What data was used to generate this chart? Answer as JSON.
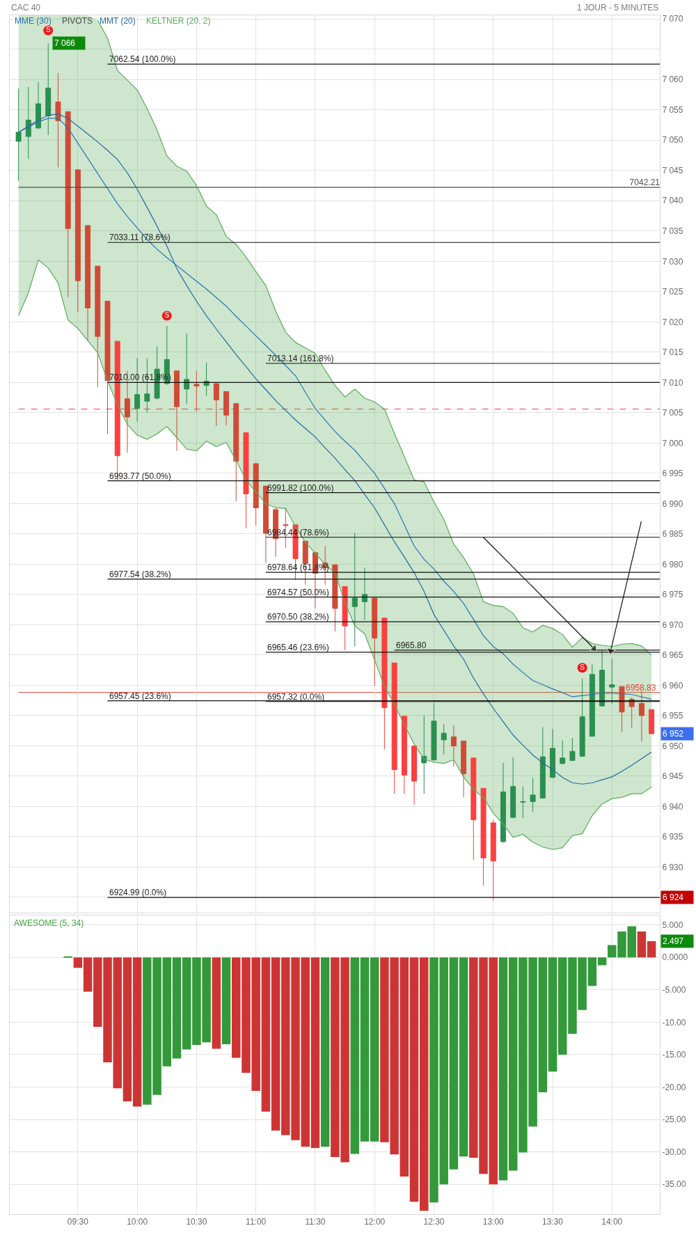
{
  "chart_data": [
    {
      "type": "candlestick",
      "title": "CAC 40",
      "subtitle": "1 JOUR - 5 MINUTES",
      "x": [
        9.0,
        9.0833,
        9.1667,
        9.25,
        9.3333,
        9.4167,
        9.5,
        9.5833,
        9.6667,
        9.75,
        9.8333,
        9.9167,
        10.0,
        10.0833,
        10.1667,
        10.25,
        10.3333,
        10.4167,
        10.5,
        10.5833,
        10.6667,
        10.75,
        10.8333,
        10.9167,
        11.0,
        11.0833,
        11.1667,
        11.25,
        11.3333,
        11.4167,
        11.5,
        11.5833,
        11.6667,
        11.75,
        11.8333,
        11.9167,
        12.0,
        12.0833,
        12.1667,
        12.25,
        12.3333,
        12.4167,
        12.5,
        12.5833,
        12.6667,
        12.75,
        12.8333,
        12.9167,
        13.0,
        13.0833,
        13.1667,
        13.25,
        13.3333,
        13.4167,
        13.5,
        13.5833,
        13.6667,
        13.75,
        13.8333,
        13.9167,
        14.0,
        14.0833,
        14.1667,
        14.25,
        14.3333
      ],
      "ohlc": [
        [
          7049.8,
          7058.5,
          7043.3,
          7051.3
        ],
        [
          7050.6,
          7058.8,
          7046.9,
          7053.3
        ],
        [
          7052.0,
          7059.6,
          7051.8,
          7056.0
        ],
        [
          7054.0,
          7066.0,
          7050.8,
          7058.6
        ],
        [
          7056.3,
          7061.1,
          7045.5,
          7053.2
        ],
        [
          7054.7,
          7054.7,
          7024.1,
          7035.4
        ],
        [
          7045.1,
          7045.1,
          7021.6,
          7026.8
        ],
        [
          7035.9,
          7035.9,
          7016.9,
          7022.3
        ],
        [
          7029.2,
          7029.2,
          7009.2,
          7017.6
        ],
        [
          7023.4,
          7023.4,
          7001.5,
          7010.3
        ],
        [
          7016.8,
          7016.8,
          6993.9,
          6997.9
        ],
        [
          7007.3,
          7011.9,
          6998.4,
          7004.3
        ],
        [
          7005.7,
          7014.0,
          7003.5,
          7008.0
        ],
        [
          7006.9,
          7014.0,
          7005.0,
          7008.1
        ],
        [
          7007.4,
          7015.9,
          7007.2,
          7012.2
        ],
        [
          7009.8,
          7019.3,
          7009.6,
          7013.8
        ],
        [
          7011.9,
          7011.9,
          6998.7,
          7006.0
        ],
        [
          7008.9,
          7018.1,
          7006.4,
          7010.5
        ],
        [
          7009.7,
          7011.9,
          7005.2,
          7009.4
        ],
        [
          7009.5,
          7013.3,
          7007.8,
          7010.2
        ],
        [
          7009.8,
          7009.8,
          7002.8,
          7007.1
        ],
        [
          7008.5,
          7008.5,
          7002.9,
          7004.6
        ],
        [
          7006.5,
          7006.5,
          6990.4,
          6997.0
        ],
        [
          7001.7,
          7001.7,
          6985.9,
          6991.6
        ],
        [
          6996.6,
          6996.6,
          6986.4,
          6989.3
        ],
        [
          6992.9,
          6992.9,
          6980.2,
          6985.1
        ],
        [
          6989.0,
          6989.4,
          6981.2,
          6984.2
        ],
        [
          6986.5,
          6989.3,
          6982.7,
          6986.4
        ],
        [
          6986.5,
          6986.5,
          6977.4,
          6980.9
        ],
        [
          6983.8,
          6983.8,
          6976.6,
          6980.1
        ],
        [
          6981.9,
          6981.9,
          6972.7,
          6978.5
        ],
        [
          6980.2,
          6983.0,
          6976.6,
          6979.4
        ],
        [
          6979.9,
          6979.9,
          6968.9,
          6972.7
        ],
        [
          6976.3,
          6976.3,
          6965.8,
          6969.8
        ],
        [
          6973.0,
          6985.2,
          6966.4,
          6974.4
        ],
        [
          6973.8,
          6979.4,
          6970.8,
          6975.0
        ],
        [
          6974.4,
          6974.4,
          6959.9,
          6967.8
        ],
        [
          6971.1,
          6971.1,
          6949.4,
          6956.3
        ],
        [
          6963.7,
          6963.7,
          6942.1,
          6946.1
        ],
        [
          6954.9,
          6954.9,
          6942.1,
          6945.2
        ],
        [
          6950.0,
          6950.0,
          6940.3,
          6944.2
        ],
        [
          6947.2,
          6955.0,
          6942.1,
          6948.3
        ],
        [
          6947.7,
          6957.1,
          6947.5,
          6954.1
        ],
        [
          6951.0,
          6953.6,
          6948.6,
          6952.1
        ],
        [
          6951.5,
          6953.4,
          6946.6,
          6950.0
        ],
        [
          6950.8,
          6950.8,
          6941.5,
          6945.4
        ],
        [
          6948.0,
          6948.0,
          6931.2,
          6937.8
        ],
        [
          6943.0,
          6943.0,
          6926.9,
          6931.5
        ],
        [
          6937.3,
          6937.8,
          6924.5,
          6931.0
        ],
        [
          6934.2,
          6947.2,
          6934.0,
          6942.4
        ],
        [
          6938.2,
          6948.1,
          6938.1,
          6943.3
        ],
        [
          6940.7,
          6943.3,
          6938.1,
          6940.8
        ],
        [
          6940.8,
          6944.7,
          6939.1,
          6941.9
        ],
        [
          6941.4,
          6953.1,
          6941.3,
          6948.2
        ],
        [
          6944.8,
          6952.8,
          6944.7,
          6949.6
        ],
        [
          6947.1,
          6950.9,
          6946.9,
          6948.0
        ],
        [
          6947.6,
          6951.3,
          6947.5,
          6949.1
        ],
        [
          6948.3,
          6961.1,
          6948.2,
          6954.8
        ],
        [
          6951.6,
          6963.5,
          6951.5,
          6961.8
        ],
        [
          6956.6,
          6965.8,
          6956.5,
          6962.5
        ],
        [
          6959.7,
          6964.4,
          6956.9,
          6960.1
        ],
        [
          6959.8,
          6959.8,
          6952.3,
          6955.6
        ],
        [
          6957.7,
          6958.0,
          6953.0,
          6956.5
        ],
        [
          6957.0,
          6959.0,
          6950.7,
          6955.0
        ],
        [
          6956.0,
          6956.0,
          6952.0,
          6952.0
        ]
      ],
      "colors": [
        "#2b8f50",
        "#2b8f50",
        "#2b8f50",
        "#2b8f50",
        "#cf4b36",
        "#cf4b36",
        "#cf4b36",
        "#cf4b36",
        "#cf4b36",
        "#cf4b36",
        "#fb3f3f",
        "#cf4b36",
        "#2b8f50",
        "#2b8f50",
        "#2b8f50",
        "#2b8f50",
        "#cf4b36",
        "#2b8f50",
        "#cf4b36",
        "#2b8f50",
        "#cf4b36",
        "#cf4b36",
        "#cf4b36",
        "#fb3f3f",
        "#cf4b36",
        "#cf4b36",
        "#cf4b36",
        "#cf4b36",
        "#fb3f3f",
        "#cf4b36",
        "#cf4b36",
        "#cf4b36",
        "#cf4b36",
        "#fb3f3f",
        "#2b8f50",
        "#2b8f50",
        "#cf4b36",
        "#fb3f3f",
        "#fb3f3f",
        "#fb3f3f",
        "#fb3f3f",
        "#2b8f50",
        "#2b8f50",
        "#2b8f50",
        "#cf4b36",
        "#cf4b36",
        "#fb3f3f",
        "#fb3f3f",
        "#fb3f3f",
        "#2b8f50",
        "#2b8f50",
        "#2b8f50",
        "#2b8f50",
        "#2b8f50",
        "#2b8f50",
        "#2b8f50",
        "#2b8f50",
        "#2b8f50",
        "#2b8f50",
        "#2b8f50",
        "#2b8f50",
        "#cf4b36",
        "#cf4b36",
        "#cf4b36",
        "#fb3f3f"
      ],
      "xlim": [
        8.926,
        14.403
      ],
      "xticks": [
        9.5,
        10,
        10.5,
        11,
        11.5,
        12,
        12.5,
        13,
        13.5,
        14
      ],
      "ylim": [
        6922.5,
        7070.6
      ],
      "yticks": [
        {
          "value": 6925,
          "label": null
        },
        {
          "value": 6930,
          "label": "6 930"
        },
        {
          "value": 6935,
          "label": "6 935"
        },
        {
          "value": 6940,
          "label": "6 940"
        },
        {
          "value": 6945,
          "label": "6 945"
        },
        {
          "value": 6950,
          "label": "6 950"
        },
        {
          "value": 6955,
          "label": "6 955"
        },
        {
          "value": 6960,
          "label": "6 960"
        },
        {
          "value": 6965,
          "label": "6 965"
        },
        {
          "value": 6970,
          "label": "6 970"
        },
        {
          "value": 6975,
          "label": "6 975"
        },
        {
          "value": 6980,
          "label": "6 980"
        },
        {
          "value": 6985,
          "label": "6 985"
        },
        {
          "value": 6990,
          "label": "6 990"
        },
        {
          "value": 6995,
          "label": "6 995"
        },
        {
          "value": 7000,
          "label": "7 000"
        },
        {
          "value": 7005,
          "label": "7 005"
        },
        {
          "value": 7010,
          "label": "7 010"
        },
        {
          "value": 7015,
          "label": "7 015"
        },
        {
          "value": 7020,
          "label": "7 020"
        },
        {
          "value": 7025,
          "label": "7 025"
        },
        {
          "value": 7030,
          "label": "7 030"
        },
        {
          "value": 7035,
          "label": "7 035"
        },
        {
          "value": 7040,
          "label": "7 040"
        },
        {
          "value": 7045,
          "label": "7 045"
        },
        {
          "value": 7050,
          "label": "7 050"
        },
        {
          "value": 7055,
          "label": "7 055"
        },
        {
          "value": 7060,
          "label": "7 060"
        },
        {
          "value": 7065,
          "label": null
        },
        {
          "value": 7070,
          "label": "7 070"
        }
      ],
      "tick_labels": "y",
      "grid": true,
      "legend": "top left",
      "series": [
        {
          "name": "MME (30)",
          "type": "line",
          "color": "#2a74b4",
          "values": [
            7051.3,
            7052.2,
            7053.0,
            7053.6,
            7053.6,
            7052.0,
            7049.5,
            7047.0,
            7044.5,
            7042.0,
            7039.5,
            7037.4,
            7035.5,
            7033.6,
            7032.0,
            7030.6,
            7029.3,
            7028.0,
            7026.7,
            7025.4,
            7024.0,
            7022.6,
            7020.9,
            7019.3,
            7017.7,
            7016.1,
            7014.5,
            7012.8,
            7011.1,
            7008.4,
            7005.7,
            7003.8,
            7001.9,
            7000.3,
            6998.8,
            6996.9,
            6995.0,
            6992.5,
            6990.0,
            6986.5,
            6983.0,
            6980.8,
            6979.2,
            6977.2,
            6975.5,
            6973.5,
            6970.9,
            6968.2,
            6966.4,
            6965.2,
            6963.5,
            6962.1,
            6960.8,
            6960.1,
            6959.4,
            6958.8,
            6958.1,
            6958.3,
            6958.5,
            6958.7,
            6958.7,
            6958.6,
            6958.5,
            6958.1,
            6957.7
          ]
        },
        {
          "name": "PIVOTS",
          "type": "line",
          "color": "#4d4d4d",
          "x": [
            9.0,
            14.403
          ],
          "values": [
            7042.21,
            7042.21
          ],
          "value_labels": [
            null,
            "7042.21"
          ]
        },
        {
          "name": "MMT (20)",
          "type": "line",
          "color": "#2469a3",
          "values": [
            7051.3,
            7052.3,
            7053.3,
            7054.1,
            7054.3,
            7053.6,
            7052.3,
            7051.0,
            7049.7,
            7048.3,
            7046.8,
            7044.6,
            7041.9,
            7038.9,
            7035.8,
            7032.5,
            7028.8,
            7026.0,
            7023.4,
            7021.0,
            7018.8,
            7016.7,
            7014.6,
            7012.6,
            7010.6,
            7008.8,
            7007.0,
            7005.4,
            7003.8,
            7002.4,
            7001.0,
            6999.2,
            6997.5,
            6995.6,
            6993.8,
            6991.5,
            6989.3,
            6986.5,
            6983.7,
            6981.2,
            6978.6,
            6975.5,
            6971.7,
            6969.1,
            6966.5,
            6964.3,
            6961.2,
            6958.6,
            6956.2,
            6954.0,
            6951.8,
            6950.1,
            6948.5,
            6947.2,
            6946.1,
            6944.8,
            6943.9,
            6943.7,
            6943.9,
            6944.4,
            6944.9,
            6945.8,
            6946.8,
            6947.9,
            6949.0
          ]
        },
        {
          "name": "KELTNER (20, 2)",
          "type": "area",
          "color": "#5aac5a",
          "values": [
            null,
            null,
            null,
            null,
            null,
            null,
            null,
            null,
            null,
            null,
            null,
            null,
            null,
            null,
            null,
            null,
            null,
            null,
            null,
            null,
            null,
            null,
            null,
            null,
            null,
            null,
            null,
            null,
            null,
            null,
            null,
            null,
            null,
            null,
            null,
            null,
            null,
            null,
            null,
            null,
            null,
            null,
            null,
            null,
            null,
            null,
            null,
            null,
            null,
            null,
            null,
            null,
            null,
            null,
            null,
            null,
            null,
            null,
            null,
            null,
            null,
            null,
            null,
            null,
            null
          ],
          "lower": [
            7021.0,
            7024.8,
            7030.2,
            7028.9,
            7026.4,
            7020.3,
            7018.9,
            7016.9,
            7014.9,
            7010.3,
            7006.3,
            7003.1,
            7001.3,
            7000.6,
            7001.5,
            7002.7,
            7000.9,
            6999.0,
            6998.7,
            7000.3,
            6999.4,
            7000.1,
            6997.1,
            6993.9,
            6991.9,
            6990.0,
            6989.3,
            6989.2,
            6986.2,
            6983.6,
            6981.8,
            6979.9,
            6978.6,
            6973.6,
            6969.8,
            6968.5,
            6964.2,
            6959.8,
            6956.9,
            6953.5,
            6950.3,
            6947.8,
            6947.3,
            6947.1,
            6947.7,
            6944.9,
            6942.8,
            6941.5,
            6938.9,
            6937.1,
            6934.9,
            6935.4,
            6934.1,
            6933.3,
            6932.9,
            6933.2,
            6935.2,
            6935.5,
            6938.5,
            6940.4,
            6941.3,
            6941.5,
            6942.1,
            6942.1,
            6943.2
          ],
          "upper": [
            7070.6,
            7070.6,
            7070.6,
            7070.6,
            7070.6,
            7070.6,
            7070.6,
            7070.6,
            7069.8,
            7066.8,
            7061.5,
            7059.9,
            7058.3,
            7055.2,
            7051.7,
            7047.4,
            7045.7,
            7044.9,
            7042.5,
            7039.1,
            7037.7,
            7034.1,
            7032.8,
            7030.7,
            7028.3,
            7026.0,
            7021.8,
            7018.3,
            7016.6,
            7015.7,
            7014.8,
            7012.0,
            7009.5,
            7007.6,
            7008.9,
            7007.4,
            7006.8,
            7005.6,
            7001.6,
            6997.8,
            6993.9,
            6993.6,
            6990.3,
            6987.4,
            6983.3,
            6981.1,
            6978.4,
            6973.8,
            6973.2,
            6973.0,
            6971.9,
            6969.5,
            6968.8,
            6969.9,
            6969.4,
            6968.4,
            6966.3,
            6967.9,
            6966.9,
            6966.6,
            6966.4,
            6966.8,
            6966.9,
            6966.5,
            6965.0
          ]
        },
        {
          "type": "line",
          "color": "#5aac5a",
          "values": [
            null,
            null,
            null,
            null,
            null,
            null,
            null,
            null,
            7069.8,
            7066.8,
            7061.5,
            7059.9,
            7058.3,
            7055.2,
            7051.7,
            7047.4,
            7045.7,
            7044.9,
            7042.5,
            7039.1,
            7037.7,
            7034.1,
            7032.8,
            7030.7,
            7028.3,
            7026.0,
            7021.8,
            7018.3,
            7016.6,
            7015.7,
            7014.8,
            7012.0,
            7009.5,
            7007.6,
            7008.9,
            7007.4,
            7006.8,
            7005.6,
            7001.6,
            6997.8,
            6993.9,
            6993.6,
            6990.3,
            6987.4,
            6983.3,
            6981.1,
            6978.4,
            6973.8,
            6973.2,
            6973.0,
            6971.9,
            6969.5,
            6968.8,
            6969.9,
            6969.4,
            6968.4,
            6966.3,
            6967.9,
            6966.9,
            6966.6,
            6966.4,
            6966.8,
            6966.9,
            6966.5,
            6965.0
          ]
        },
        {
          "type": "line",
          "color": "#5aac5a",
          "values": [
            7021.0,
            7024.8,
            7030.2,
            7028.9,
            7026.4,
            7020.3,
            7018.9,
            7016.9,
            7014.9,
            7010.3,
            7006.3,
            7003.1,
            7001.3,
            7000.6,
            7001.5,
            7002.7,
            7000.9,
            6999.0,
            6998.7,
            7000.3,
            6999.4,
            7000.1,
            6997.1,
            6993.9,
            6991.9,
            6990.0,
            6989.3,
            6989.2,
            6986.2,
            6983.6,
            6981.8,
            6979.9,
            6978.6,
            6973.6,
            6969.8,
            6968.5,
            6964.2,
            6959.8,
            6956.9,
            6953.5,
            6950.3,
            6947.8,
            6947.3,
            6947.1,
            6947.7,
            6944.9,
            6942.8,
            6941.5,
            6938.9,
            6937.1,
            6934.9,
            6935.4,
            6934.1,
            6933.3,
            6932.9,
            6933.2,
            6935.2,
            6935.5,
            6938.5,
            6940.4,
            6941.3,
            6941.5,
            6942.1,
            6942.1,
            6943.2
          ]
        },
        {
          "type": "line",
          "color": "#111111",
          "x": [
            9.75,
            14.403
          ],
          "values": [
            7062.54,
            7062.54
          ]
        },
        {
          "type": "line",
          "color": "#111111",
          "x": [
            9.75,
            14.403
          ],
          "values": [
            7033.11,
            7033.11
          ]
        },
        {
          "type": "line",
          "color": "#111111",
          "x": [
            9.75,
            14.403
          ],
          "values": [
            7010.0,
            7010.0
          ]
        },
        {
          "type": "line",
          "color": "#111111",
          "x": [
            9.75,
            14.403
          ],
          "values": [
            6993.77,
            6993.77
          ]
        },
        {
          "type": "line",
          "color": "#111111",
          "x": [
            9.75,
            14.403
          ],
          "values": [
            6977.54,
            6977.54
          ]
        },
        {
          "type": "line",
          "color": "#111111",
          "x": [
            9.75,
            14.403
          ],
          "values": [
            6957.45,
            6957.45
          ]
        },
        {
          "type": "line",
          "color": "#111111",
          "x": [
            9.75,
            14.403
          ],
          "values": [
            6924.99,
            6924.99
          ]
        },
        {
          "type": "line",
          "color": "#111111",
          "x": [
            11.0833,
            14.403
          ],
          "values": [
            7013.14,
            7013.14
          ]
        },
        {
          "type": "line",
          "color": "#111111",
          "x": [
            11.0833,
            14.403
          ],
          "values": [
            6991.82,
            6991.82
          ]
        },
        {
          "type": "line",
          "color": "#111111",
          "x": [
            11.0833,
            14.403
          ],
          "values": [
            6984.44,
            6984.44
          ]
        },
        {
          "type": "line",
          "color": "#111111",
          "x": [
            11.0833,
            14.403
          ],
          "values": [
            6978.64,
            6978.64
          ]
        },
        {
          "type": "line",
          "color": "#111111",
          "x": [
            11.0833,
            14.403
          ],
          "values": [
            6974.57,
            6974.57
          ]
        },
        {
          "type": "line",
          "color": "#111111",
          "x": [
            11.0833,
            14.403
          ],
          "values": [
            6970.5,
            6970.5
          ]
        },
        {
          "type": "line",
          "color": "#111111",
          "x": [
            11.0833,
            14.403
          ],
          "values": [
            6965.46,
            6965.46
          ]
        },
        {
          "type": "line",
          "color": "#111111",
          "x": [
            11.0833,
            14.403
          ],
          "values": [
            6957.32,
            6957.32
          ]
        },
        {
          "type": "line",
          "color": "#111111",
          "x": [
            12.1667,
            14.403
          ],
          "values": [
            6965.8,
            6965.8
          ]
        },
        {
          "type": "line",
          "color": "#111111",
          "marker": "triangle",
          "x": [
            12.916,
            13.849
          ],
          "values": [
            6984.44,
            6966.05
          ]
        },
        {
          "type": "line",
          "color": "#111111",
          "marker": "triangle",
          "x": [
            14.247,
            13.989
          ],
          "values": [
            6987.07,
            6965.7
          ]
        },
        {
          "type": "scatter",
          "color": "#ee1c1c",
          "marker": "circle",
          "x": [
            9.25,
            10.25,
            13.75
          ],
          "values": [
            7068.1,
            7021.0,
            6962.9
          ],
          "value_labels": [
            "S",
            "S",
            "S"
          ]
        }
      ],
      "ref_lines": [
        {
          "axis": "y",
          "value": 6958.83,
          "label": "6958.83",
          "color": "#e8413a"
        },
        {
          "axis": "y",
          "value": 7005.6,
          "color": "#f03c3c",
          "line_style": "dashed"
        }
      ],
      "annotations": [
        {
          "text": "7062.54 (100.0%)",
          "x": 9.75,
          "y": 7062.54
        },
        {
          "text": "7033.11 (78.6%)",
          "x": 9.75,
          "y": 7033.11
        },
        {
          "text": "7010.00 (61.8%)",
          "x": 9.75,
          "y": 7010.0
        },
        {
          "text": "6993.77 (50.0%)",
          "x": 9.75,
          "y": 6993.77
        },
        {
          "text": "6977.54 (38.2%)",
          "x": 9.75,
          "y": 6977.54
        },
        {
          "text": "6957.45 (23.6%)",
          "x": 9.75,
          "y": 6957.45
        },
        {
          "text": "6924.99 (0.0%)",
          "x": 9.75,
          "y": 6924.99
        },
        {
          "text": "7013.14 (161.8%)",
          "x": 11.0833,
          "y": 7013.14
        },
        {
          "text": "6991.82 (100.0%)",
          "x": 11.0833,
          "y": 6991.82
        },
        {
          "text": "6984.44 (78.6%)",
          "x": 11.0833,
          "y": 6984.44
        },
        {
          "text": "6978.64 (61.8%)",
          "x": 11.0833,
          "y": 6978.64
        },
        {
          "text": "6974.57 (50.0%)",
          "x": 11.0833,
          "y": 6974.57
        },
        {
          "text": "6970.50 (38.2%)",
          "x": 11.0833,
          "y": 6970.5
        },
        {
          "text": "6965.46 (23.6%)",
          "x": 11.0833,
          "y": 6965.46
        },
        {
          "text": "6957.32 (0.0%)",
          "x": 11.0833,
          "y": 6957.32
        },
        {
          "text": "6965.80",
          "x": 12.1667,
          "y": 6965.8
        },
        {
          "text": "7 066",
          "x": 9.25,
          "y": 7066.0
        },
        {
          "text": "6 952",
          "x": 14.3333,
          "y": 6952.0
        },
        {
          "text": "6 924",
          "x": 14.403,
          "y": 6924.99
        }
      ]
    },
    {
      "type": "bar",
      "title": "AWESOME (5, 34)",
      "x": [
        9.4167,
        9.5,
        9.5833,
        9.6667,
        9.75,
        9.8333,
        9.9167,
        10.0,
        10.0833,
        10.1667,
        10.25,
        10.3333,
        10.4167,
        10.5,
        10.5833,
        10.6667,
        10.75,
        10.8333,
        10.9167,
        11.0,
        11.0833,
        11.1667,
        11.25,
        11.3333,
        11.4167,
        11.5,
        11.5833,
        11.6667,
        11.75,
        11.8333,
        11.9167,
        12.0,
        12.0833,
        12.1667,
        12.25,
        12.3333,
        12.4167,
        12.5,
        12.5833,
        12.6667,
        12.75,
        12.8333,
        12.9167,
        13.0,
        13.0833,
        13.1667,
        13.25,
        13.3333,
        13.4167,
        13.5,
        13.5833,
        13.6667,
        13.75,
        13.8333,
        13.9167,
        14.0,
        14.0833,
        14.1667,
        14.25,
        14.3333
      ],
      "values": [
        0.1,
        -1.6,
        -5.3,
        -10.7,
        -16.2,
        -20.2,
        -22.2,
        -23.0,
        -22.7,
        -21.2,
        -16.8,
        -15.6,
        -14.2,
        -13.5,
        -13.1,
        -14.1,
        -13.4,
        -15.5,
        -17.8,
        -20.6,
        -23.8,
        -26.7,
        -27.4,
        -28.2,
        -29.2,
        -29.4,
        -29.2,
        -30.8,
        -31.6,
        -30.3,
        -28.4,
        -28.4,
        -28.5,
        -30.4,
        -33.8,
        -37.7,
        -39.1,
        -37.8,
        -35.0,
        -32.7,
        -30.7,
        -30.9,
        -33.4,
        -35.0,
        -34.4,
        -32.9,
        -30.1,
        -26.1,
        -20.8,
        -17.6,
        -15.0,
        -11.8,
        -8.1,
        -4.4,
        -1.2,
        1.9,
        4.0,
        4.8,
        4.0,
        2.497
      ],
      "colors": [
        "#33993a",
        "#cd3535",
        "#cd3535",
        "#cd3535",
        "#cd3535",
        "#cd3535",
        "#cd3535",
        "#cd3535",
        "#33993a",
        "#33993a",
        "#33993a",
        "#33993a",
        "#33993a",
        "#33993a",
        "#33993a",
        "#cd3535",
        "#33993a",
        "#cd3535",
        "#cd3535",
        "#cd3535",
        "#cd3535",
        "#cd3535",
        "#cd3535",
        "#cd3535",
        "#cd3535",
        "#cd3535",
        "#33993a",
        "#cd3535",
        "#cd3535",
        "#33993a",
        "#33993a",
        "#33993a",
        "#cd3535",
        "#cd3535",
        "#cd3535",
        "#cd3535",
        "#cd3535",
        "#33993a",
        "#33993a",
        "#33993a",
        "#33993a",
        "#cd3535",
        "#cd3535",
        "#cd3535",
        "#33993a",
        "#33993a",
        "#33993a",
        "#33993a",
        "#33993a",
        "#33993a",
        "#33993a",
        "#33993a",
        "#33993a",
        "#33993a",
        "#33993a",
        "#33993a",
        "#33993a",
        "#33993a",
        "#cd3535",
        "#cd3535"
      ],
      "xlim": [
        8.926,
        14.403
      ],
      "xticks": [
        {
          "value": 9.5,
          "label": "09:30"
        },
        {
          "value": 10,
          "label": "10:00"
        },
        {
          "value": 10.5,
          "label": "10:30"
        },
        {
          "value": 11,
          "label": "11:00"
        },
        {
          "value": 11.5,
          "label": "11:30"
        },
        {
          "value": 12,
          "label": "12:00"
        },
        {
          "value": 12.5,
          "label": "12:30"
        },
        {
          "value": 13,
          "label": "13:00"
        },
        {
          "value": 13.5,
          "label": "13:30"
        },
        {
          "value": 14,
          "label": "14:00"
        }
      ],
      "ylim": [
        -39.6,
        6.5
      ],
      "yticks": [
        {
          "value": 5,
          "label": "5.000"
        },
        {
          "value": 0,
          "label": "0.0000"
        },
        {
          "value": -5,
          "label": "-5.000"
        },
        {
          "value": -10,
          "label": "-10.00"
        },
        {
          "value": -15,
          "label": "-15.00"
        },
        {
          "value": -20,
          "label": "-20.00"
        },
        {
          "value": -25,
          "label": "-25.00"
        },
        {
          "value": -30,
          "label": "-30.00"
        },
        {
          "value": -35,
          "label": "-35.00"
        }
      ],
      "grid": true,
      "annotations": [
        {
          "text": "2.497",
          "x": 14.3333,
          "y": 2.497
        }
      ]
    }
  ]
}
